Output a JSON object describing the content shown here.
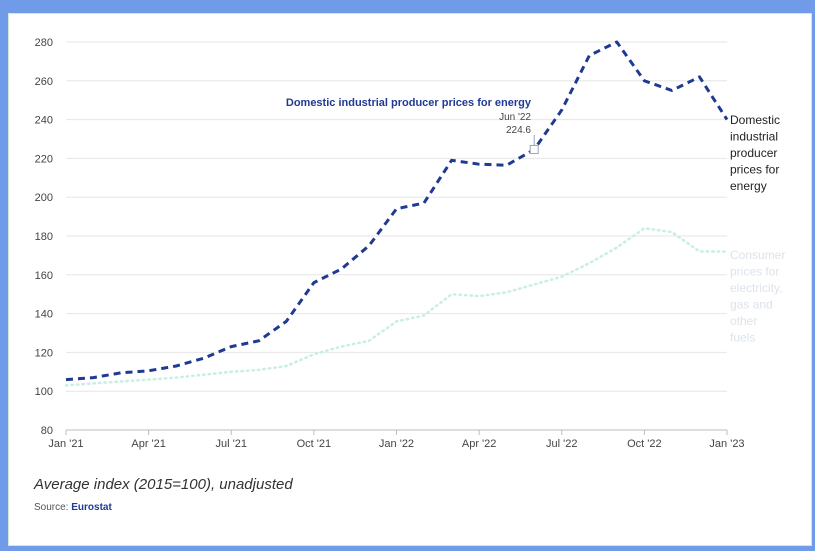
{
  "chart_data": {
    "type": "line",
    "subtitle": "Average index (2015=100), unadjusted",
    "source_label": "Source:",
    "source_name": "Eurostat",
    "ylim": [
      80,
      280
    ],
    "y_ticks": [
      80,
      100,
      120,
      140,
      160,
      180,
      200,
      220,
      240,
      260,
      280
    ],
    "x_range": [
      0,
      24
    ],
    "x_ticks": [
      {
        "pos": 0,
        "label": "Jan '21"
      },
      {
        "pos": 3,
        "label": "Apr '21"
      },
      {
        "pos": 6,
        "label": "Jul '21"
      },
      {
        "pos": 9,
        "label": "Oct '21"
      },
      {
        "pos": 12,
        "label": "Jan '22"
      },
      {
        "pos": 15,
        "label": "Apr '22"
      },
      {
        "pos": 18,
        "label": "Jul '22"
      },
      {
        "pos": 21,
        "label": "Oct '22"
      },
      {
        "pos": 24,
        "label": "Jan '23"
      }
    ],
    "grid": true,
    "series": [
      {
        "name": "Domestic industrial producer prices for energy",
        "color": "#1f3a93",
        "style": "dashed",
        "x": [
          0,
          1,
          2,
          3,
          4,
          5,
          6,
          7,
          8,
          9,
          10,
          11,
          12,
          13,
          14,
          15,
          16,
          17,
          18,
          19,
          20,
          21,
          22,
          23,
          24
        ],
        "values": [
          106,
          107,
          109.5,
          110.5,
          113,
          117,
          123,
          126,
          136,
          156,
          163,
          175,
          194,
          197,
          219,
          217,
          216.5,
          224.6,
          245,
          273,
          280,
          260,
          255,
          262,
          240
        ]
      },
      {
        "name": "Consumer prices for electricity, gas and other fuels",
        "color": "#c9efe3",
        "style": "dotted",
        "x": [
          0,
          1,
          2,
          3,
          4,
          5,
          6,
          7,
          8,
          9,
          10,
          11,
          12,
          13,
          14,
          15,
          16,
          17,
          18,
          19,
          20,
          21,
          22,
          23,
          24
        ],
        "values": [
          103,
          104,
          105,
          106,
          107,
          108.5,
          110,
          111,
          113,
          119,
          123,
          126,
          136,
          139,
          150,
          149,
          151,
          155,
          159,
          166,
          174,
          184,
          182,
          172,
          172
        ]
      }
    ],
    "annotation": {
      "series": "Domestic industrial producer prices for energy",
      "title": "Domestic industrial producer prices for energy",
      "date": "Jun '22",
      "value": "224.6",
      "x": 17,
      "y": 224.6
    },
    "end_labels": [
      [
        "Domestic",
        "industrial",
        "producer",
        "prices for",
        "energy"
      ],
      [
        "Consumer",
        "prices for",
        "electricity,",
        "gas and",
        "other",
        "fuels"
      ]
    ]
  }
}
